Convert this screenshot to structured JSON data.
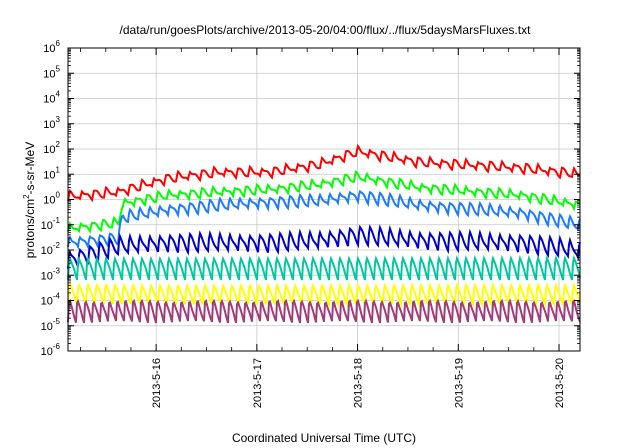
{
  "chart_data": {
    "type": "line",
    "title": "/data/run/goesPlots/archive/2013-05-20/04:00/flux/../flux/5daysMarsFluxes.txt",
    "xlabel": "Coordinated Universal Time (UTC)",
    "ylabel": "protons/cm2-s-sr-MeV",
    "ylabel_parts": [
      "protons/cm",
      "2",
      "-s-sr-MeV"
    ],
    "x_domain": [
      "2013-05-15 03:00",
      "2013-05-20 05:00"
    ],
    "x_ticks": [
      "2013-5-16",
      "2013-5-17",
      "2013-5-18",
      "2013-5-19",
      "2013-5-20"
    ],
    "y_scale": "log",
    "ylim": [
      1e-06,
      1000000.0
    ],
    "y_ticks": [
      {
        "base": "10",
        "exp": "-6"
      },
      {
        "base": "10",
        "exp": "-5"
      },
      {
        "base": "10",
        "exp": "-4"
      },
      {
        "base": "10",
        "exp": "-3"
      },
      {
        "base": "10",
        "exp": "-2"
      },
      {
        "base": "10",
        "exp": "-1"
      },
      {
        "base": "10",
        "exp": "0"
      },
      {
        "base": "10",
        "exp": "1"
      },
      {
        "base": "10",
        "exp": "2"
      },
      {
        "base": "10",
        "exp": "3"
      },
      {
        "base": "10",
        "exp": "4"
      },
      {
        "base": "10",
        "exp": "5"
      },
      {
        "base": "10",
        "exp": "6"
      }
    ],
    "grid": true,
    "legend": "none",
    "series": [
      {
        "color": "#ff0000",
        "x": [
          "2013-05-15 03:00",
          "2013-05-15 15:00",
          "2013-05-16 03:00",
          "2013-05-16 15:00",
          "2013-05-17 03:00",
          "2013-05-17 15:00",
          "2013-05-18 00:00",
          "2013-05-18 15:00",
          "2013-05-19 15:00",
          "2013-05-20 05:00"
        ],
        "y": [
          1.3,
          2.0,
          7,
          12,
          12,
          25,
          80,
          30,
          18,
          10
        ]
      },
      {
        "color": "#00ff00",
        "x": [
          "2013-05-15 03:00",
          "2013-05-15 15:00",
          "2013-05-15 16:00",
          "2013-05-16 03:00",
          "2013-05-16 15:00",
          "2013-05-17 03:00",
          "2013-05-17 15:00",
          "2013-05-18 00:00",
          "2013-05-18 15:00",
          "2013-05-19 15:00",
          "2013-05-20 05:00"
        ],
        "y": [
          0.07,
          0.12,
          0.7,
          1.5,
          2.0,
          2.5,
          4,
          8,
          3,
          1.5,
          0.6
        ]
      },
      {
        "color": "#1e7bff",
        "x": [
          "2013-05-15 03:00",
          "2013-05-15 15:00",
          "2013-05-15 16:00",
          "2013-05-16 03:00",
          "2013-05-16 15:00",
          "2013-05-17 03:00",
          "2013-05-17 15:00",
          "2013-05-18 00:00",
          "2013-05-18 15:00",
          "2013-05-19 15:00",
          "2013-05-20 05:00"
        ],
        "y": [
          0.02,
          0.03,
          0.2,
          0.4,
          0.6,
          0.8,
          0.9,
          1.5,
          0.6,
          0.3,
          0.1
        ]
      },
      {
        "color": "#0000cc",
        "x": [
          "2013-05-15 03:00",
          "2013-05-15 15:00",
          "2013-05-16 03:00",
          "2013-05-16 15:00",
          "2013-05-17 03:00",
          "2013-05-17 15:00",
          "2013-05-18 00:00",
          "2013-05-18 15:00",
          "2013-05-19 15:00",
          "2013-05-20 05:00"
        ],
        "y": [
          0.004,
          0.015,
          0.02,
          0.02,
          0.02,
          0.025,
          0.04,
          0.025,
          0.02,
          0.01
        ]
      },
      {
        "color": "#00c8a0",
        "x": [
          "2013-05-15 03:00",
          "2013-05-16 03:00",
          "2013-05-17 03:00",
          "2013-05-18 03:00",
          "2013-05-19 03:00",
          "2013-05-20 05:00"
        ],
        "y": [
          0.002,
          0.002,
          0.002,
          0.002,
          0.002,
          0.002
        ]
      },
      {
        "color": "#ffff00",
        "x": [
          "2013-05-15 03:00",
          "2013-05-16 03:00",
          "2013-05-17 03:00",
          "2013-05-18 03:00",
          "2013-05-19 03:00",
          "2013-05-20 05:00"
        ],
        "y": [
          0.0002,
          0.00018,
          0.00018,
          0.00018,
          0.00018,
          0.00018
        ]
      },
      {
        "color": "#a03c78",
        "x": [
          "2013-05-15 03:00",
          "2013-05-16 03:00",
          "2013-05-17 03:00",
          "2013-05-18 03:00",
          "2013-05-19 03:00",
          "2013-05-20 05:00"
        ],
        "y": [
          4e-05,
          4e-05,
          4e-05,
          4e-05,
          4e-05,
          4e-05
        ]
      }
    ]
  }
}
